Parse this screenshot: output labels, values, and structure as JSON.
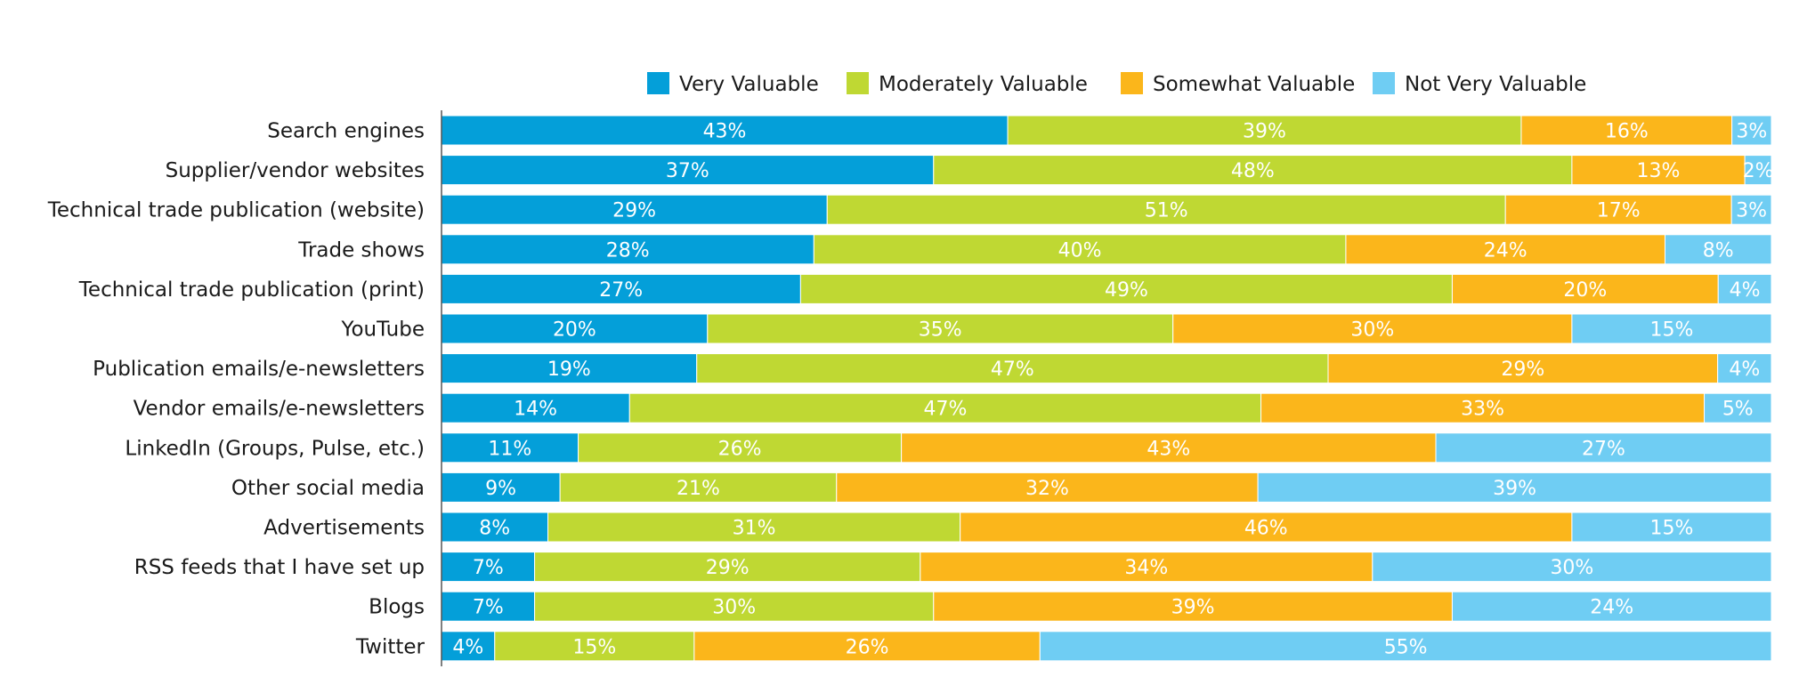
{
  "chart_data": {
    "type": "bar",
    "orientation": "horizontal",
    "stacked": true,
    "title": "",
    "xlabel": "",
    "ylabel": "",
    "legend_placement": "top",
    "grid": false,
    "categories": [
      "Search engines",
      "Supplier/vendor websites",
      "Technical trade publication (website)",
      "Trade shows",
      "Technical trade publication (print)",
      "YouTube",
      "Publication emails/e-newsletters",
      "Vendor emails/e-newsletters",
      "LinkedIn (Groups, Pulse, etc.)",
      "Other social media",
      "Advertisements",
      "RSS feeds that I have set up",
      "Blogs",
      "Twitter"
    ],
    "series": [
      {
        "name": "Very Valuable",
        "color": "#049fd9",
        "values": [
          43,
          37,
          29,
          28,
          27,
          20,
          19,
          14,
          11,
          9,
          8,
          7,
          7,
          4
        ]
      },
      {
        "name": "Moderately Valuable",
        "color": "#bfd833",
        "values": [
          39,
          48,
          51,
          40,
          49,
          35,
          47,
          47,
          26,
          21,
          31,
          29,
          30,
          15
        ]
      },
      {
        "name": "Somewhat Valuable",
        "color": "#fbb61b",
        "values": [
          16,
          13,
          17,
          24,
          20,
          30,
          29,
          33,
          43,
          32,
          46,
          34,
          39,
          26
        ]
      },
      {
        "name": "Not Very Valuable",
        "color": "#6fcdf3",
        "values": [
          3,
          2,
          3,
          8,
          4,
          15,
          4,
          5,
          27,
          39,
          15,
          30,
          24,
          55
        ]
      }
    ],
    "value_suffix": "%"
  }
}
